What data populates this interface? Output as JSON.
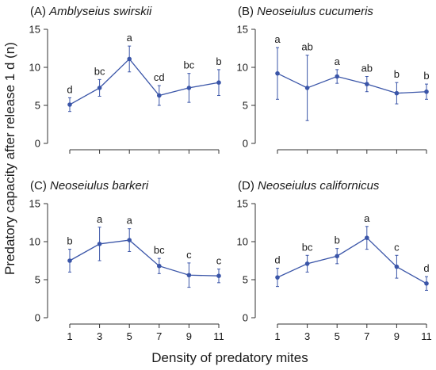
{
  "chart_data": {
    "type": "line",
    "ylabel": "Predatory capacity after release 1 d (n)",
    "xlabel": "Density of predatory mites",
    "x": [
      1,
      3,
      5,
      7,
      9,
      11
    ],
    "ylim": [
      0,
      15
    ],
    "yticks": [
      0,
      5,
      10,
      15
    ],
    "series_color": "#3a55a8",
    "panels": [
      {
        "prefix": "(A) ",
        "species": "Amblyseius swirskii",
        "values": [
          5.1,
          7.3,
          11.1,
          6.3,
          7.3,
          8.0
        ],
        "errors": [
          0.9,
          1.1,
          1.7,
          1.3,
          1.9,
          1.7
        ],
        "letters": [
          "d",
          "bc",
          "a",
          "cd",
          "bc",
          "b"
        ]
      },
      {
        "prefix": "(B) ",
        "species": "Neoseiulus cucumeris",
        "values": [
          9.2,
          7.3,
          8.8,
          7.8,
          6.6,
          6.8
        ],
        "errors": [
          3.4,
          4.3,
          0.9,
          1.0,
          1.4,
          1.0
        ],
        "letters": [
          "a",
          "ab",
          "a",
          "ab",
          "b",
          "b"
        ]
      },
      {
        "prefix": "(C) ",
        "species": "Neoseiulus barkeri",
        "values": [
          7.5,
          9.7,
          10.2,
          6.8,
          5.6,
          5.5
        ],
        "errors": [
          1.5,
          2.2,
          1.5,
          1.0,
          1.6,
          0.9
        ],
        "letters": [
          "b",
          "a",
          "a",
          "bc",
          "c",
          "c"
        ]
      },
      {
        "prefix": "(D) ",
        "species": "Neoseiulus californicus",
        "values": [
          5.3,
          7.1,
          8.1,
          10.5,
          6.7,
          4.5
        ],
        "errors": [
          1.2,
          1.1,
          1.0,
          1.5,
          1.5,
          0.9
        ],
        "letters": [
          "d",
          "bc",
          "b",
          "a",
          "c",
          "d"
        ]
      }
    ]
  }
}
